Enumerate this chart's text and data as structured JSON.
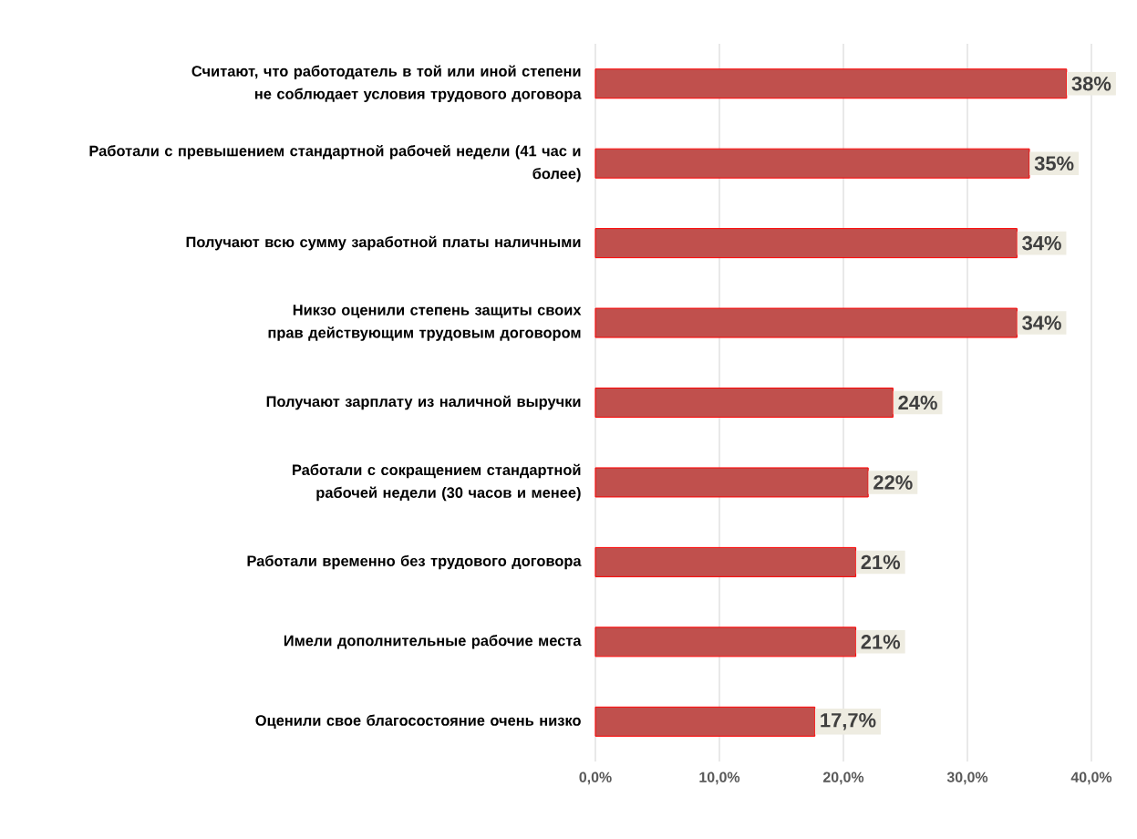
{
  "chart_data": {
    "type": "bar",
    "orientation": "horizontal",
    "categories": [
      "Считают, что работодатель в той или иной степени не соблюдает условия трудового договора",
      "Работали с превышением стандартной рабочей недели (41 час и более)",
      "Получают всю сумму заработной платы наличными",
      "Никзо оценили степень защиты своих прав действующим трудовым договором",
      "Получают зарплату из наличной выручки",
      "Работали с сокращением стандартной рабочей недели (30 часов и менее)",
      "Работали временно без трудового договора",
      "Имели дополнительные рабочие места",
      "Оценили свое благосостояние очень низко"
    ],
    "values": [
      38,
      35,
      34,
      34,
      24,
      22,
      21,
      21,
      17.7
    ],
    "value_labels": [
      "38%",
      "35%",
      "34%",
      "34%",
      "24%",
      "22%",
      "21%",
      "21%",
      "17,7%"
    ],
    "color": "#c0504d",
    "xlim": [
      0,
      40
    ],
    "xticks": [
      {
        "value": 0,
        "label": "0,0%"
      },
      {
        "value": 10,
        "label": "10,0%"
      },
      {
        "value": 20,
        "label": "20,0%"
      },
      {
        "value": 30,
        "label": "30,0%"
      },
      {
        "value": 40,
        "label": "40,0%"
      }
    ],
    "grid": "x"
  }
}
